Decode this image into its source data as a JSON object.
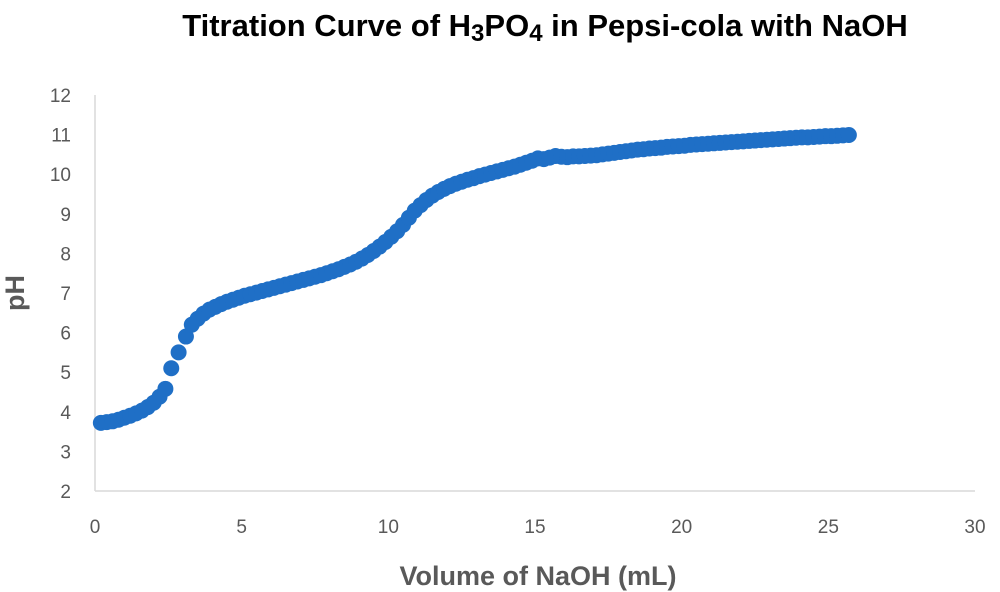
{
  "chart_data": {
    "type": "scatter",
    "title": {
      "parts": [
        {
          "text": "Titration Curve of H"
        },
        {
          "text": "3",
          "sub": true
        },
        {
          "text": "PO"
        },
        {
          "text": "4",
          "sub": true
        },
        {
          "text": " in Pepsi-cola with NaOH"
        }
      ]
    },
    "xlabel": "Volume of NaOH (mL)",
    "ylabel": "pH",
    "xlim": [
      0,
      30
    ],
    "ylim": [
      2,
      12
    ],
    "xticks": [
      0,
      5,
      10,
      15,
      20,
      25,
      30
    ],
    "yticks": [
      2,
      3,
      4,
      5,
      6,
      7,
      8,
      9,
      10,
      11,
      12
    ],
    "grid": false,
    "legend": "none",
    "marker_color": "#1f6fc6",
    "series": [
      {
        "points": [
          [
            0.2,
            3.72
          ],
          [
            0.4,
            3.74
          ],
          [
            0.6,
            3.76
          ],
          [
            0.8,
            3.8
          ],
          [
            1.0,
            3.85
          ],
          [
            1.2,
            3.9
          ],
          [
            1.4,
            3.96
          ],
          [
            1.6,
            4.03
          ],
          [
            1.8,
            4.12
          ],
          [
            2.0,
            4.23
          ],
          [
            2.2,
            4.38
          ],
          [
            2.4,
            4.58
          ],
          [
            2.6,
            5.1
          ],
          [
            2.85,
            5.5
          ],
          [
            3.1,
            5.9
          ],
          [
            3.3,
            6.2
          ],
          [
            3.5,
            6.35
          ],
          [
            3.7,
            6.48
          ],
          [
            3.9,
            6.58
          ],
          [
            4.1,
            6.65
          ],
          [
            4.3,
            6.72
          ],
          [
            4.5,
            6.78
          ],
          [
            4.7,
            6.83
          ],
          [
            4.9,
            6.88
          ],
          [
            5.1,
            6.93
          ],
          [
            5.3,
            6.97
          ],
          [
            5.5,
            7.01
          ],
          [
            5.7,
            7.05
          ],
          [
            5.9,
            7.09
          ],
          [
            6.1,
            7.13
          ],
          [
            6.3,
            7.17
          ],
          [
            6.5,
            7.21
          ],
          [
            6.7,
            7.25
          ],
          [
            6.9,
            7.29
          ],
          [
            7.1,
            7.33
          ],
          [
            7.3,
            7.37
          ],
          [
            7.5,
            7.41
          ],
          [
            7.7,
            7.45
          ],
          [
            7.9,
            7.5
          ],
          [
            8.1,
            7.55
          ],
          [
            8.3,
            7.6
          ],
          [
            8.5,
            7.66
          ],
          [
            8.7,
            7.72
          ],
          [
            8.9,
            7.79
          ],
          [
            9.1,
            7.87
          ],
          [
            9.3,
            7.96
          ],
          [
            9.5,
            8.06
          ],
          [
            9.7,
            8.17
          ],
          [
            9.9,
            8.29
          ],
          [
            10.1,
            8.42
          ],
          [
            10.3,
            8.56
          ],
          [
            10.5,
            8.72
          ],
          [
            10.7,
            8.9
          ],
          [
            10.9,
            9.08
          ],
          [
            11.1,
            9.22
          ],
          [
            11.3,
            9.35
          ],
          [
            11.5,
            9.46
          ],
          [
            11.7,
            9.55
          ],
          [
            11.9,
            9.63
          ],
          [
            12.1,
            9.7
          ],
          [
            12.3,
            9.76
          ],
          [
            12.5,
            9.81
          ],
          [
            12.7,
            9.86
          ],
          [
            12.9,
            9.9
          ],
          [
            13.1,
            9.95
          ],
          [
            13.3,
            9.99
          ],
          [
            13.5,
            10.03
          ],
          [
            13.7,
            10.07
          ],
          [
            13.9,
            10.11
          ],
          [
            14.1,
            10.15
          ],
          [
            14.3,
            10.19
          ],
          [
            14.5,
            10.24
          ],
          [
            14.7,
            10.29
          ],
          [
            14.9,
            10.34
          ],
          [
            15.1,
            10.4
          ],
          [
            15.3,
            10.38
          ],
          [
            15.5,
            10.42
          ],
          [
            15.7,
            10.46
          ],
          [
            15.9,
            10.44
          ],
          [
            16.1,
            10.43
          ],
          [
            16.3,
            10.45
          ],
          [
            16.5,
            10.45
          ],
          [
            16.7,
            10.46
          ],
          [
            16.9,
            10.47
          ],
          [
            17.1,
            10.48
          ],
          [
            17.3,
            10.5
          ],
          [
            17.5,
            10.52
          ],
          [
            17.7,
            10.54
          ],
          [
            17.9,
            10.56
          ],
          [
            18.1,
            10.58
          ],
          [
            18.3,
            10.6
          ],
          [
            18.5,
            10.62
          ],
          [
            18.7,
            10.63
          ],
          [
            18.9,
            10.65
          ],
          [
            19.1,
            10.66
          ],
          [
            19.3,
            10.67
          ],
          [
            19.5,
            10.69
          ],
          [
            19.7,
            10.7
          ],
          [
            19.9,
            10.71
          ],
          [
            20.1,
            10.72
          ],
          [
            20.3,
            10.74
          ],
          [
            20.5,
            10.75
          ],
          [
            20.7,
            10.76
          ],
          [
            20.9,
            10.77
          ],
          [
            21.1,
            10.78
          ],
          [
            21.3,
            10.79
          ],
          [
            21.5,
            10.8
          ],
          [
            21.7,
            10.81
          ],
          [
            21.9,
            10.82
          ],
          [
            22.1,
            10.83
          ],
          [
            22.3,
            10.84
          ],
          [
            22.5,
            10.85
          ],
          [
            22.7,
            10.86
          ],
          [
            22.9,
            10.87
          ],
          [
            23.1,
            10.88
          ],
          [
            23.3,
            10.89
          ],
          [
            23.5,
            10.9
          ],
          [
            23.7,
            10.91
          ],
          [
            23.9,
            10.92
          ],
          [
            24.1,
            10.93
          ],
          [
            24.3,
            10.93
          ],
          [
            24.5,
            10.94
          ],
          [
            24.7,
            10.95
          ],
          [
            24.9,
            10.96
          ],
          [
            25.1,
            10.96
          ],
          [
            25.3,
            10.97
          ],
          [
            25.5,
            10.98
          ],
          [
            25.7,
            10.99
          ]
        ]
      }
    ]
  }
}
